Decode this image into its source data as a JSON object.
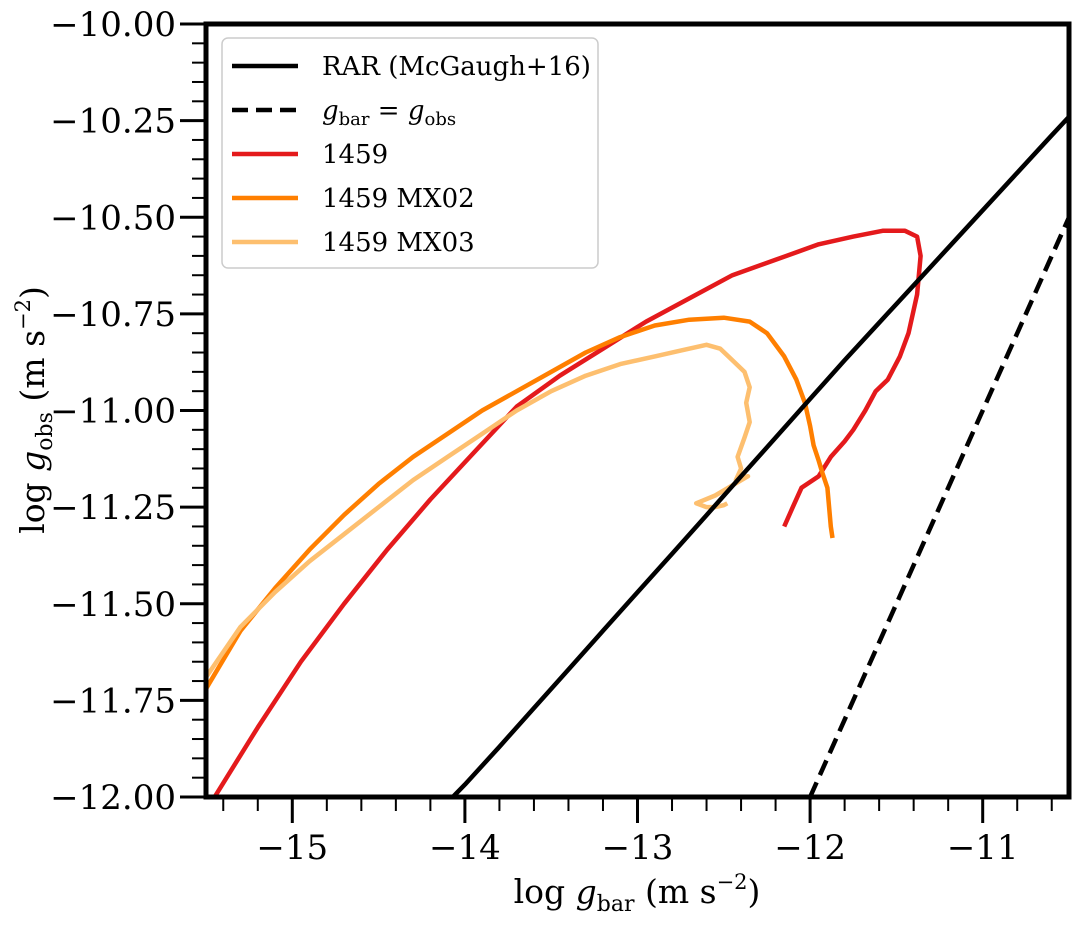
{
  "chart_data": {
    "type": "line",
    "title": "",
    "xlabel": "log g_bar (m s^-2)",
    "ylabel": "log g_obs (m s^-2)",
    "xlabel_parts": {
      "pre": "log ",
      "var": "g",
      "sub": "bar",
      "unit": "(m s",
      "exp": "−2",
      "close": ")"
    },
    "ylabel_parts": {
      "pre": "log ",
      "var": "g",
      "sub": "obs",
      "unit": "(m s",
      "exp": "−2",
      "close": ")"
    },
    "xlim": [
      -15.5,
      -10.5
    ],
    "ylim": [
      -12.0,
      -10.0
    ],
    "xticks": [
      -15,
      -14,
      -13,
      -12,
      -11
    ],
    "xtick_labels": [
      "−15",
      "−14",
      "−13",
      "−12",
      "−11"
    ],
    "yticks": [
      -10.0,
      -10.25,
      -10.5,
      -10.75,
      -11.0,
      -11.25,
      -11.5,
      -11.75,
      -12.0
    ],
    "ytick_labels": [
      "−10.00",
      "−10.25",
      "−10.50",
      "−10.75",
      "−11.00",
      "−11.25",
      "−11.50",
      "−11.75",
      "−12.00"
    ],
    "legend_position": "upper-left",
    "legend": [
      {
        "label": "RAR (McGaugh+16)",
        "color": "#000000",
        "style": "solid"
      },
      {
        "label": "g_bar = g_obs",
        "color": "#000000",
        "style": "dashed",
        "math": {
          "v": "g",
          "s1": "bar",
          "eq": " = ",
          "s2": "obs"
        }
      },
      {
        "label": "1459",
        "color": "#e41a1c",
        "style": "solid"
      },
      {
        "label": "1459 MX02",
        "color": "#ff7f00",
        "style": "solid"
      },
      {
        "label": "1459 MX03",
        "color": "#fdbf6f",
        "style": "solid"
      }
    ],
    "series": [
      {
        "name": "1459",
        "color": "#e41a1c",
        "style": "solid",
        "x": [
          -15.45,
          -15.2,
          -14.95,
          -14.7,
          -14.45,
          -14.2,
          -13.95,
          -13.7,
          -13.45,
          -13.2,
          -12.95,
          -12.7,
          -12.45,
          -12.2,
          -11.95,
          -11.75,
          -11.58,
          -11.45,
          -11.38,
          -11.36,
          -11.38,
          -11.43,
          -11.48,
          -11.55,
          -11.62,
          -11.68,
          -11.75,
          -11.8,
          -11.88,
          -11.95,
          -12.05,
          -12.1,
          -12.15
        ],
        "y": [
          -12.0,
          -11.82,
          -11.65,
          -11.5,
          -11.36,
          -11.23,
          -11.11,
          -10.99,
          -10.91,
          -10.84,
          -10.77,
          -10.71,
          -10.65,
          -10.61,
          -10.57,
          -10.55,
          -10.535,
          -10.535,
          -10.55,
          -10.6,
          -10.7,
          -10.8,
          -10.86,
          -10.92,
          -10.95,
          -11.0,
          -11.05,
          -11.08,
          -11.12,
          -11.17,
          -11.2,
          -11.25,
          -11.3
        ]
      },
      {
        "name": "1459 MX02",
        "color": "#ff7f00",
        "style": "solid",
        "x": [
          -15.5,
          -15.3,
          -15.1,
          -14.9,
          -14.7,
          -14.5,
          -14.3,
          -14.1,
          -13.9,
          -13.7,
          -13.5,
          -13.3,
          -13.1,
          -12.9,
          -12.7,
          -12.5,
          -12.35,
          -12.25,
          -12.15,
          -12.08,
          -12.03,
          -12.0,
          -11.98,
          -11.95,
          -11.93,
          -11.9,
          -11.89,
          -11.88,
          -11.87
        ],
        "y": [
          -11.72,
          -11.57,
          -11.46,
          -11.36,
          -11.27,
          -11.19,
          -11.12,
          -11.06,
          -11.0,
          -10.95,
          -10.9,
          -10.85,
          -10.81,
          -10.78,
          -10.765,
          -10.76,
          -10.77,
          -10.8,
          -10.86,
          -10.92,
          -10.98,
          -11.04,
          -11.09,
          -11.13,
          -11.16,
          -11.2,
          -11.25,
          -11.3,
          -11.33
        ]
      },
      {
        "name": "1459 MX03",
        "color": "#fdbf6f",
        "style": "solid",
        "x": [
          -15.5,
          -15.3,
          -15.1,
          -14.9,
          -14.7,
          -14.5,
          -14.3,
          -14.1,
          -13.9,
          -13.7,
          -13.5,
          -13.3,
          -13.1,
          -12.9,
          -12.75,
          -12.6,
          -12.52,
          -12.45,
          -12.38,
          -12.35,
          -12.37,
          -12.35,
          -12.38,
          -12.42,
          -12.4,
          -12.43,
          -12.36,
          -12.55,
          -12.66,
          -12.6,
          -12.55,
          -12.5,
          -12.48
        ],
        "y": [
          -11.69,
          -11.56,
          -11.47,
          -11.39,
          -11.32,
          -11.25,
          -11.18,
          -11.12,
          -11.06,
          -11.0,
          -10.95,
          -10.91,
          -10.88,
          -10.86,
          -10.845,
          -10.83,
          -10.84,
          -10.87,
          -10.9,
          -10.94,
          -10.98,
          -11.03,
          -11.07,
          -11.12,
          -11.15,
          -11.18,
          -11.17,
          -11.22,
          -11.24,
          -11.25,
          -11.25,
          -11.245,
          -11.24
        ]
      },
      {
        "name": "RAR (McGaugh+16)",
        "color": "#000000",
        "style": "solid",
        "x": [
          -14.07,
          -14.0,
          -13.8,
          -13.6,
          -13.4,
          -13.2,
          -13.0,
          -12.8,
          -12.6,
          -12.4,
          -12.2,
          -12.0,
          -11.8,
          -11.6,
          -11.4,
          -11.2,
          -11.0,
          -10.8,
          -10.6,
          -10.5
        ],
        "y": [
          -12.0,
          -11.968,
          -11.87,
          -11.77,
          -11.67,
          -11.57,
          -11.47,
          -11.371,
          -11.271,
          -11.17,
          -11.07,
          -10.97,
          -10.87,
          -10.773,
          -10.676,
          -10.579,
          -10.482,
          -10.385,
          -10.288,
          -10.24
        ]
      },
      {
        "name": "g_bar = g_obs",
        "color": "#000000",
        "style": "dashed",
        "x": [
          -12.0,
          -10.5
        ],
        "y": [
          -12.0,
          -10.5
        ]
      }
    ]
  }
}
